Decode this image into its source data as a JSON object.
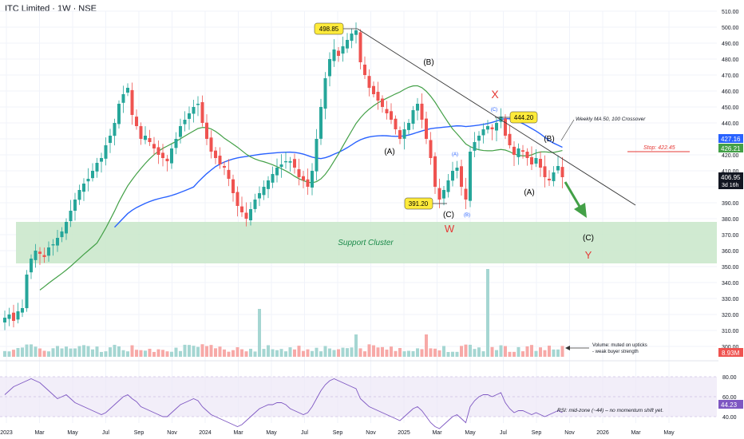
{
  "header": {
    "symbol": "ITC Limited",
    "interval": "1W",
    "exchange": "NSE",
    "title": "ITC Limited · 1W · NSE"
  },
  "colors": {
    "up": "#26a69a",
    "down": "#ef5350",
    "ma50": "#43a047",
    "ma100": "#2962ff",
    "support": "#c8e6c9",
    "trendline": "#333333",
    "rsi": "#7e57c2",
    "rsi_band": "#ede7f6",
    "label_bg": "#ffeb3b",
    "arrow": "#43a047",
    "wave_red": "#e53935"
  },
  "chart_data": {
    "type": "candlestick",
    "title": "ITC Limited · 1W · NSE",
    "ylim": [
      288,
      510
    ],
    "price_ticks": [
      "510.00",
      "500.00",
      "490.00",
      "480.00",
      "470.00",
      "460.00",
      "450.00",
      "440.00",
      "430.00",
      "420.00",
      "410.00",
      "400.00",
      "390.00",
      "380.00",
      "370.00",
      "360.00",
      "350.00",
      "340.00",
      "330.00",
      "320.00",
      "310.00",
      "300.00"
    ],
    "x_ticks": [
      "2023",
      "Mar",
      "May",
      "Jul",
      "Sep",
      "Nov",
      "2024",
      "Mar",
      "May",
      "Jul",
      "Sep",
      "Nov",
      "2025",
      "Mar",
      "May",
      "Jul",
      "Sep",
      "Nov",
      "2026",
      "Mar",
      "May"
    ],
    "close_series_weekly": [
      318,
      320,
      316,
      322,
      324,
      345,
      355,
      360,
      358,
      356,
      362,
      364,
      368,
      372,
      378,
      385,
      392,
      398,
      402,
      405,
      410,
      415,
      418,
      426,
      432,
      440,
      452,
      458,
      462,
      445,
      438,
      430,
      432,
      428,
      424,
      420,
      418,
      416,
      424,
      430,
      438,
      442,
      446,
      450,
      452,
      440,
      430,
      422,
      418,
      414,
      412,
      405,
      396,
      388,
      384,
      380,
      386,
      392,
      396,
      400,
      404,
      408,
      412,
      414,
      416,
      416,
      412,
      406,
      404,
      400,
      410,
      430,
      450,
      468,
      480,
      486,
      482,
      488,
      492,
      496,
      498,
      478,
      470,
      462,
      458,
      454,
      450,
      446,
      442,
      436,
      430,
      436,
      440,
      448,
      452,
      442,
      430,
      418,
      400,
      392,
      398,
      404,
      410,
      412,
      400,
      392,
      422,
      428,
      432,
      436,
      438,
      436,
      440,
      444,
      432,
      426,
      420,
      424,
      422,
      418,
      414,
      418,
      412,
      406,
      404,
      409,
      413,
      406
    ],
    "levels": {
      "high": "498.85",
      "low": "391.20",
      "swing_high": "444.20",
      "last": "406.95",
      "ma_blue": "427.16",
      "ma_green": "426.21",
      "stop": "Stop: 422.45"
    },
    "support_cluster": {
      "label": "Support Cluster",
      "range": [
        352,
        378
      ]
    },
    "volume_badge": "8.93M",
    "rsi": {
      "value": "44.23",
      "ticks": [
        "80.00",
        "60.00",
        "40.00"
      ],
      "series": [
        62,
        66,
        70,
        72,
        74,
        76,
        78,
        76,
        74,
        70,
        66,
        62,
        58,
        60,
        62,
        58,
        54,
        52,
        50,
        48,
        46,
        44,
        42,
        44,
        48,
        52,
        56,
        60,
        62,
        58,
        55,
        50,
        48,
        46,
        44,
        42,
        40,
        40,
        44,
        48,
        52,
        54,
        56,
        58,
        56,
        50,
        46,
        42,
        40,
        38,
        36,
        34,
        32,
        30,
        32,
        36,
        40,
        44,
        48,
        50,
        52,
        52,
        54,
        54,
        52,
        48,
        46,
        44,
        42,
        44,
        50,
        58,
        66,
        72,
        76,
        78,
        76,
        74,
        72,
        70,
        68,
        58,
        54,
        50,
        48,
        46,
        44,
        42,
        40,
        38,
        36,
        40,
        44,
        48,
        50,
        46,
        40,
        34,
        30,
        28,
        32,
        36,
        40,
        42,
        38,
        34,
        50,
        56,
        60,
        62,
        62,
        60,
        62,
        64,
        54,
        48,
        44,
        46,
        46,
        44,
        42,
        44,
        42,
        40,
        42,
        44,
        46,
        44
      ]
    },
    "labels": {
      "wave_x": "X",
      "wave_w": "W",
      "wave_y": "Y",
      "wave_b1": "(B)",
      "wave_a1": "(A)",
      "wave_c1": "(C)",
      "wave_b2": "(B)",
      "wave_a2": "(A)",
      "wave_c2": "(C)",
      "wave_a_small": "(A)",
      "wave_b_small": "(B)",
      "wave_c_small": "(C)"
    },
    "annotations": {
      "ma_cross": "Weekly MA 50, 100 Crossover",
      "volume_note_1": "Volume: muted on upticks",
      "volume_note_2": "- weak buyer strength",
      "rsi_note": "RSI: mid-zone (~44) – no momentum shift yet.",
      "countdown": "3d 16h"
    }
  }
}
